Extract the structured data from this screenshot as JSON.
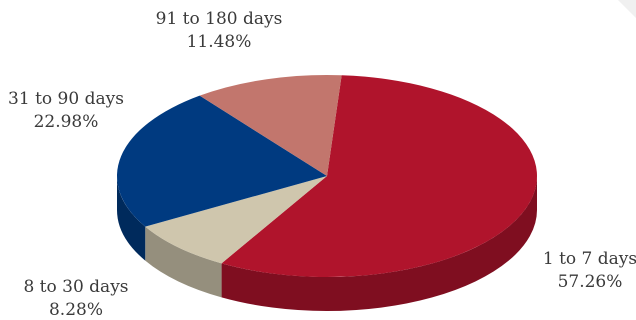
{
  "chart_data": {
    "type": "pie",
    "style": "3d",
    "start_angle_deg": 274,
    "title": "",
    "slices": [
      {
        "label": "1 to 7 days",
        "pct_text": "57.26%",
        "value": 57.26,
        "color": "#b0142c"
      },
      {
        "label": "8 to 30 days",
        "pct_text": "8.28%",
        "value": 8.28,
        "color": "#cfc6ad"
      },
      {
        "label": "31 to 90 days",
        "pct_text": "22.98%",
        "value": 22.98,
        "color": "#003a80"
      },
      {
        "label": "91 to 180 days",
        "pct_text": "11.48%",
        "value": 11.48,
        "color": "#c2766d"
      }
    ]
  }
}
